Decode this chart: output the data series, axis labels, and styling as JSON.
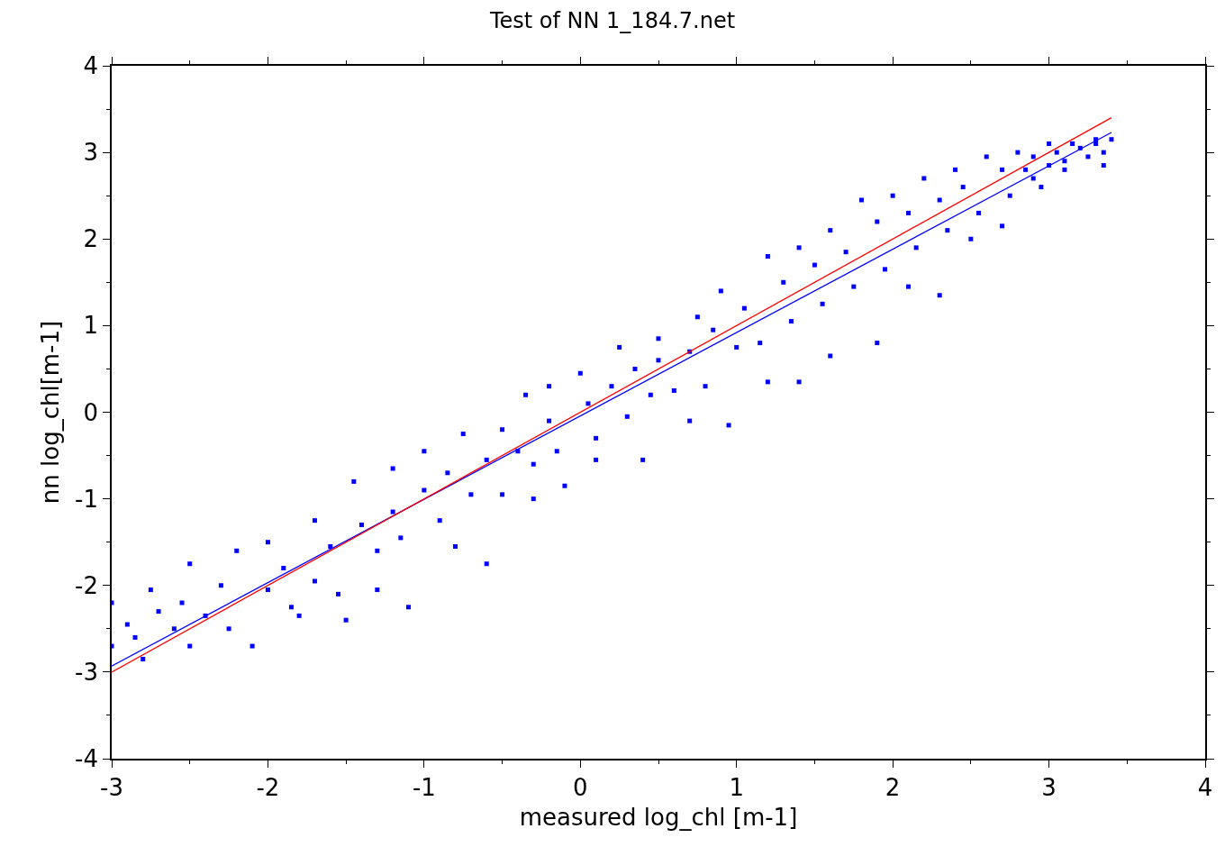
{
  "chart_data": {
    "type": "scatter",
    "title": "Test of NN 1_184.7.net",
    "xlabel": "measured log_chl [m-1]",
    "ylabel": "nn log_chl[m-1]",
    "xlim": [
      -3,
      4
    ],
    "ylim": [
      -4,
      4
    ],
    "xticks": [
      -3,
      -2,
      -1,
      0,
      1,
      2,
      3,
      4
    ],
    "yticks": [
      -4,
      -3,
      -2,
      -1,
      0,
      1,
      2,
      3,
      4
    ],
    "series": [
      {
        "color": "#0000ff",
        "marker": "square",
        "x": [
          -3,
          -2.75,
          -2.5,
          -2.2,
          -2.0,
          -1.7,
          -1.45,
          -1.2,
          -1.0,
          -0.75,
          -0.5,
          -0.35,
          -0.2,
          0,
          0.25,
          0.5,
          0.75,
          0.9,
          1.2,
          1.4,
          1.6,
          1.8,
          2.0,
          2.2,
          2.4,
          2.6,
          2.8,
          3.0,
          3.3,
          -3,
          -2.8,
          -2.5,
          -2.1,
          -1.8,
          -1.5,
          -1.3,
          -1.1,
          -0.8,
          -0.6,
          -0.3,
          -0.1,
          0.1,
          0.4,
          0.7,
          0.95,
          1.2,
          1.4,
          1.6,
          1.9,
          2.1,
          2.3,
          2.5,
          2.7,
          2.9,
          3.1,
          3.35,
          -2.9,
          -2.85,
          -2.7,
          -2.6,
          -2.55,
          -2.4,
          -2.3,
          -2.25,
          -2.0,
          -1.9,
          -1.85,
          -1.7,
          -1.6,
          -1.55,
          -1.4,
          -1.3,
          -1.2,
          -1.15,
          -1.0,
          -0.9,
          -0.85,
          -0.7,
          -0.6,
          -0.5,
          -0.4,
          -0.3,
          -0.2,
          -0.15,
          0.05,
          0.1,
          0.2,
          0.3,
          0.35,
          0.45,
          0.5,
          0.6,
          0.7,
          0.8,
          0.85,
          1.0,
          1.05,
          1.15,
          1.3,
          1.35,
          1.5,
          1.55,
          1.7,
          1.75,
          1.9,
          1.95,
          2.1,
          2.15,
          2.3,
          2.35,
          2.45,
          2.55,
          2.7,
          2.75,
          2.9,
          2.95,
          3.05,
          3.1,
          3.2,
          3.25,
          3.3,
          3.35,
          3.4,
          3.15,
          3.0,
          2.85
        ],
        "values": [
          -2.2,
          -2.05,
          -1.75,
          -1.6,
          -1.5,
          -1.25,
          -0.8,
          -0.65,
          -0.45,
          -0.25,
          -0.2,
          0.2,
          0.3,
          0.45,
          0.75,
          0.85,
          1.1,
          1.4,
          1.8,
          1.9,
          2.1,
          2.45,
          2.5,
          2.7,
          2.8,
          2.95,
          3.0,
          3.1,
          3.15,
          -2.7,
          -2.85,
          -2.7,
          -2.7,
          -2.35,
          -2.4,
          -2.05,
          -2.25,
          -1.55,
          -1.75,
          -1.0,
          -0.85,
          -0.55,
          -0.55,
          -0.1,
          -0.15,
          0.35,
          0.35,
          0.65,
          0.8,
          1.45,
          1.35,
          2.0,
          2.15,
          2.7,
          2.8,
          2.85,
          -2.45,
          -2.6,
          -2.3,
          -2.5,
          -2.2,
          -2.35,
          -2.0,
          -2.5,
          -2.05,
          -1.8,
          -2.25,
          -1.95,
          -1.55,
          -2.1,
          -1.3,
          -1.6,
          -1.15,
          -1.45,
          -0.9,
          -1.25,
          -0.7,
          -0.95,
          -0.55,
          -0.95,
          -0.45,
          -0.6,
          -0.1,
          -0.45,
          0.1,
          -0.3,
          0.3,
          -0.05,
          0.5,
          0.2,
          0.6,
          0.25,
          0.7,
          0.3,
          0.95,
          0.75,
          1.2,
          0.8,
          1.5,
          1.05,
          1.7,
          1.25,
          1.85,
          1.45,
          2.2,
          1.65,
          2.3,
          1.9,
          2.45,
          2.1,
          2.6,
          2.3,
          2.8,
          2.5,
          2.95,
          2.6,
          3.0,
          2.9,
          3.05,
          2.95,
          3.1,
          3.0,
          3.15,
          3.1,
          2.85,
          2.8
        ]
      },
      {
        "type": "line",
        "marker": "none",
        "line_style": "solid",
        "color": "#0000ff",
        "x": [
          -3,
          3.4
        ],
        "values": [
          -2.93,
          3.23
        ]
      },
      {
        "type": "line",
        "marker": "none",
        "line_style": "solid",
        "color": "#ff0000",
        "x": [
          -3,
          3.4
        ],
        "values": [
          -3,
          3.4
        ]
      }
    ]
  }
}
